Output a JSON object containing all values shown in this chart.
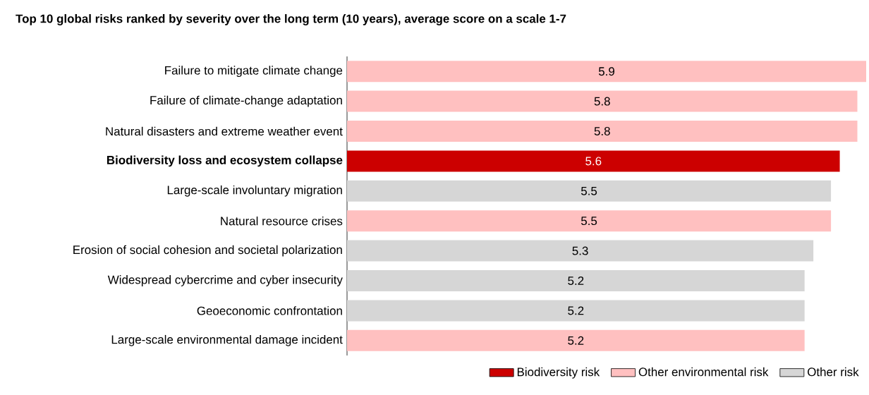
{
  "chart_data": {
    "type": "bar",
    "orientation": "horizontal",
    "title": "Top 10 global risks ranked by severity over the long term (10 years), average score on a scale 1-7",
    "categories": [
      "Failure to mitigate climate change",
      "Failure of climate-change adaptation",
      "Natural disasters and extreme weather event",
      "**Biodiversity loss and ecosystem collapse**",
      "Large-scale involuntary migration",
      "Natural resource crises",
      "Erosion of social cohesion and societal polarization",
      "Widespread cybercrime and cyber insecurity",
      "Geoeconomic confrontation",
      "Large-scale environmental damage incident"
    ],
    "series": [
      {
        "name": "Biodiversity risk",
        "color": "#cc0000",
        "values": [
          null,
          null,
          null,
          5.6,
          null,
          null,
          null,
          null,
          null,
          null
        ]
      },
      {
        "name": "Other environmental risk",
        "color": "#ffc0c0",
        "values": [
          5.9,
          5.8,
          5.8,
          null,
          null,
          5.5,
          null,
          null,
          null,
          5.2
        ]
      },
      {
        "name": "Other risk",
        "color": "#d6d6d6",
        "values": [
          null,
          null,
          null,
          null,
          5.5,
          null,
          5.3,
          5.2,
          5.2,
          null
        ]
      }
    ],
    "data_labels": true,
    "legend": "bottom right"
  }
}
